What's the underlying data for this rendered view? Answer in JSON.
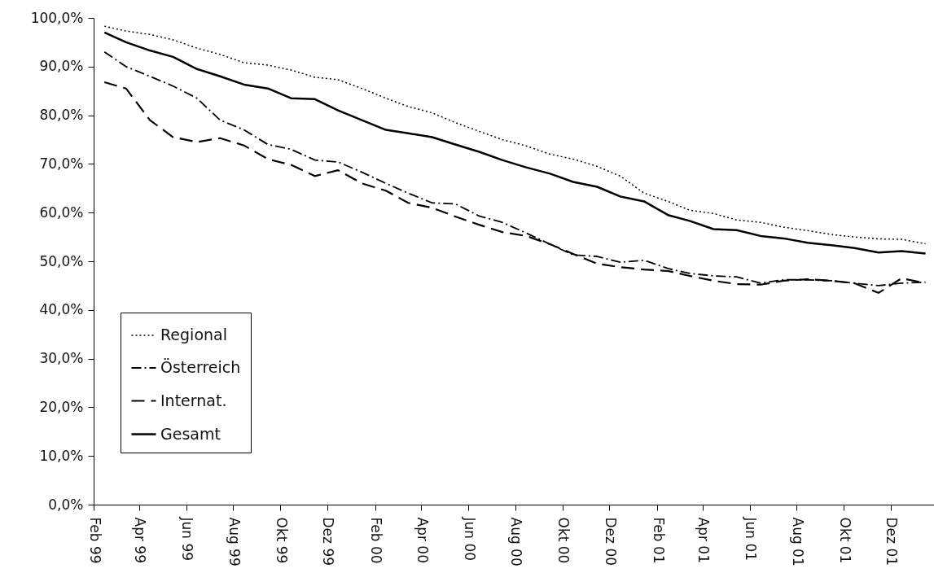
{
  "chart_data": {
    "type": "line",
    "x": [
      "1999-02-15",
      "1999-03-15",
      "1999-04-15",
      "1999-05-15",
      "1999-06-15",
      "1999-07-15",
      "1999-08-15",
      "1999-09-15",
      "1999-10-15",
      "1999-11-15",
      "1999-12-15",
      "2000-01-15",
      "2000-02-15",
      "2000-03-15",
      "2000-04-15",
      "2000-05-15",
      "2000-06-15",
      "2000-07-15",
      "2000-08-15",
      "2000-09-15",
      "2000-10-15",
      "2000-11-15",
      "2000-12-15",
      "2001-01-15",
      "2001-02-15",
      "2001-03-15",
      "2001-04-15",
      "2001-05-15",
      "2001-06-15",
      "2001-07-15",
      "2001-08-15",
      "2001-09-15",
      "2001-10-15",
      "2001-11-15",
      "2001-12-15",
      "2002-01-15"
    ],
    "series": [
      {
        "name": "Regional",
        "color": "#000000",
        "line_style": "dotted",
        "values": [
          98.3,
          97.3,
          96.6,
          95.5,
          93.8,
          92.5,
          90.8,
          90.3,
          89.3,
          87.8,
          87.3,
          85.5,
          83.5,
          81.8,
          80.5,
          78.5,
          76.7,
          75,
          73.7,
          72,
          71,
          69.5,
          67.5,
          64,
          62.3,
          60.5,
          59.8,
          58.5,
          58,
          57,
          56.3,
          55.5,
          55,
          54.6,
          54.5,
          53.6
        ]
      },
      {
        "name": "Österreich",
        "color": "#000000",
        "line_style": "dashdot",
        "values": [
          93,
          90,
          88,
          86,
          83.5,
          79,
          77,
          74,
          73,
          70.8,
          70.4,
          68.3,
          66,
          64,
          62,
          61.8,
          59.3,
          58,
          55.8,
          53.5,
          51.3,
          51,
          49.8,
          50.2,
          48.5,
          47.5,
          47,
          46.8,
          45.5,
          46.2,
          46.2,
          46,
          45.5,
          45,
          45.5,
          45.7
        ]
      },
      {
        "name": "Internat.",
        "color": "#000000",
        "line_style": "dashed",
        "values": [
          86.8,
          85.5,
          79,
          75.5,
          74.5,
          75.3,
          73.8,
          71,
          69.8,
          67.5,
          68.7,
          66,
          64.5,
          62,
          61,
          59.2,
          57.5,
          56,
          55.2,
          53.5,
          51.5,
          49.5,
          48.8,
          48.3,
          48,
          47,
          46,
          45.3,
          45.2,
          46,
          46.3,
          46,
          45.5,
          43.5,
          46.5,
          45.5
        ]
      },
      {
        "name": "Gesamt",
        "color": "#000000",
        "line_style": "solid",
        "values": [
          97,
          95,
          93.3,
          92,
          89.5,
          88,
          86.3,
          85.5,
          83.5,
          83.3,
          81,
          79,
          77,
          76.3,
          75.5,
          74,
          72.5,
          70.8,
          69.3,
          68,
          66.3,
          65.3,
          63.3,
          62.3,
          59.5,
          58.3,
          56.6,
          56.4,
          55.2,
          54.7,
          53.8,
          53.3,
          52.7,
          51.8,
          52.1,
          51.6
        ]
      }
    ],
    "xlim": [
      "1999-02-01",
      "2002-01-26"
    ],
    "xticks": [
      {
        "value": "1999-02-01",
        "label": "Feb 99"
      },
      {
        "value": "1999-04-01",
        "label": "Apr 99"
      },
      {
        "value": "1999-06-01",
        "label": "Jun 99"
      },
      {
        "value": "1999-08-01",
        "label": "Aug 99"
      },
      {
        "value": "1999-10-01",
        "label": "Okt 99"
      },
      {
        "value": "1999-12-01",
        "label": "Dez 99"
      },
      {
        "value": "2000-02-01",
        "label": "Feb 00"
      },
      {
        "value": "2000-04-01",
        "label": "Apr 00"
      },
      {
        "value": "2000-06-01",
        "label": "Jun 00"
      },
      {
        "value": "2000-08-01",
        "label": "Aug 00"
      },
      {
        "value": "2000-10-01",
        "label": "Okt 00"
      },
      {
        "value": "2000-12-01",
        "label": "Dez 00"
      },
      {
        "value": "2001-02-01",
        "label": "Feb 01"
      },
      {
        "value": "2001-04-01",
        "label": "Apr 01"
      },
      {
        "value": "2001-06-01",
        "label": "Jun 01"
      },
      {
        "value": "2001-08-01",
        "label": "Aug 01"
      },
      {
        "value": "2001-10-01",
        "label": "Okt 01"
      },
      {
        "value": "2001-12-01",
        "label": "Dez 01"
      }
    ],
    "ylim": [
      0,
      100
    ],
    "yticks": [
      {
        "value": 0,
        "label": "0,0%"
      },
      {
        "value": 10,
        "label": "10,0%"
      },
      {
        "value": 20,
        "label": "20,0%"
      },
      {
        "value": 30,
        "label": "30,0%"
      },
      {
        "value": 40,
        "label": "40,0%"
      },
      {
        "value": 50,
        "label": "50,0%"
      },
      {
        "value": 60,
        "label": "60,0%"
      },
      {
        "value": 70,
        "label": "70,0%"
      },
      {
        "value": 80,
        "label": "80,0%"
      },
      {
        "value": 90,
        "label": "90,0%"
      },
      {
        "value": 100,
        "label": "100,0%"
      }
    ],
    "grid": false,
    "legend": "bottom left"
  }
}
